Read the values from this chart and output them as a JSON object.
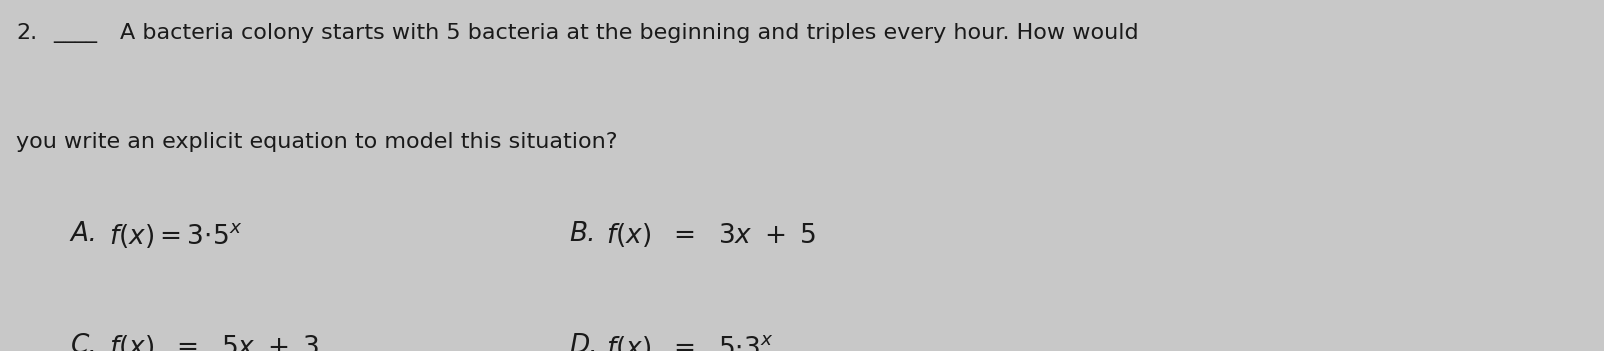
{
  "background_color": "#c8c8c8",
  "text_color": "#1a1a1a",
  "fig_width": 16.04,
  "fig_height": 3.51,
  "dpi": 100,
  "question_number": "2.",
  "question_line1": "A bacteria colony starts with 5 bacteria at the beginning and triples every hour. How would",
  "question_line2": "you write an explicit equation to model this situation?",
  "main_fontsize": 16,
  "option_fontsize": 19
}
